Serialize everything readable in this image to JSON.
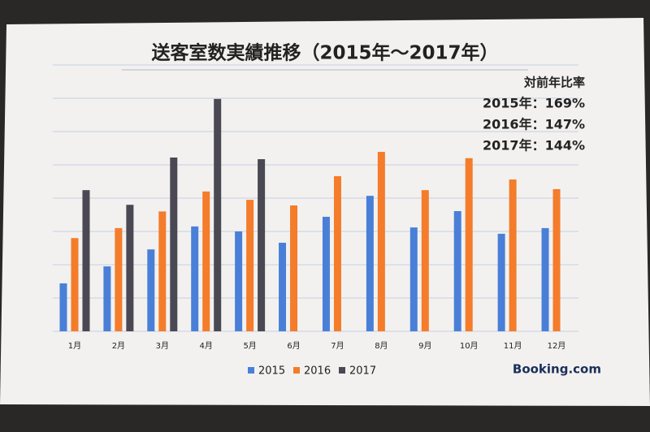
{
  "chart_data": {
    "type": "bar",
    "title": "送客室数実績推移（2015年～2017年）",
    "categories": [
      "1月",
      "2月",
      "3月",
      "4月",
      "5月",
      "6月",
      "7月",
      "8月",
      "9月",
      "10月",
      "11月",
      "12月"
    ],
    "series": [
      {
        "name": "2015",
        "color": "#4a7fd8",
        "values": [
          1.44,
          1.95,
          2.46,
          3.15,
          3.0,
          2.66,
          3.44,
          4.07,
          3.12,
          3.61,
          2.93,
          3.1
        ]
      },
      {
        "name": "2016",
        "color": "#f47c2a",
        "values": [
          2.8,
          3.1,
          3.6,
          4.2,
          3.95,
          3.78,
          4.66,
          5.39,
          4.24,
          5.2,
          4.56,
          4.27
        ]
      },
      {
        "name": "2017",
        "color": "#4a4852",
        "values": [
          4.24,
          3.8,
          5.22,
          6.98,
          5.17,
          null,
          null,
          null,
          null,
          null,
          null,
          null
        ]
      }
    ],
    "ylim": [
      0,
      8
    ],
    "grid": true,
    "legend": "bottom",
    "annotations": [
      "対前年比率",
      "2015年：169%",
      "2016年：147%",
      "2017年：144%"
    ],
    "brand": "Booking.com"
  }
}
